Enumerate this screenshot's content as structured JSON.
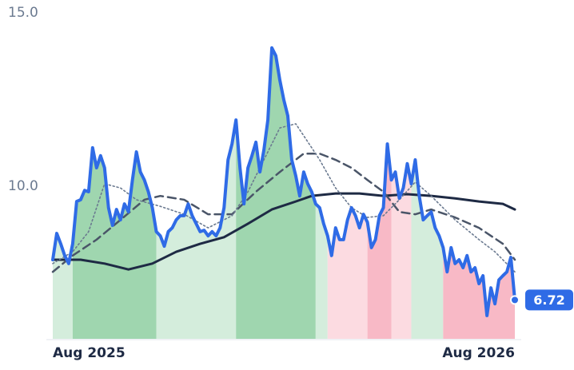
{
  "chart_data": {
    "type": "line",
    "xlim": [
      0,
      116
    ],
    "ylim": [
      5.6,
      15
    ],
    "xticks": [
      {
        "value": 0,
        "label": "Aug 2025"
      },
      {
        "value": 116,
        "label": "Aug 2026"
      }
    ],
    "yticks": [
      {
        "value": 15,
        "label": "15.0"
      },
      {
        "value": 10,
        "label": "10.0"
      }
    ],
    "bands": [
      {
        "from": 0,
        "to": 5,
        "color": "#d4eddc"
      },
      {
        "from": 5,
        "to": 26,
        "color": "#9fd6af"
      },
      {
        "from": 26,
        "to": 46,
        "color": "#d4eddc"
      },
      {
        "from": 46,
        "to": 66,
        "color": "#9fd6af"
      },
      {
        "from": 66,
        "to": 69,
        "color": "#d4eddc"
      },
      {
        "from": 69,
        "to": 79,
        "color": "#fcdbe1"
      },
      {
        "from": 79,
        "to": 85,
        "color": "#f8b9c6"
      },
      {
        "from": 85,
        "to": 90,
        "color": "#fcdbe1"
      },
      {
        "from": 90,
        "to": 98,
        "color": "#d4eddc"
      },
      {
        "from": 98,
        "to": 116,
        "color": "#f8b9c6"
      }
    ],
    "series": [
      {
        "color": "#1e2a44",
        "style": "solid",
        "width": 3,
        "x": [
          0,
          7,
          13,
          19,
          25,
          31,
          37,
          43,
          49,
          55,
          61,
          65,
          71,
          77,
          83,
          89,
          95,
          101,
          107,
          113,
          116
        ],
        "values": [
          7.88,
          7.88,
          7.77,
          7.6,
          7.77,
          8.11,
          8.34,
          8.53,
          8.92,
          9.33,
          9.56,
          9.72,
          9.79,
          9.79,
          9.72,
          9.77,
          9.72,
          9.65,
          9.56,
          9.49,
          9.33
        ]
      },
      {
        "color": "#4a5568",
        "style": "dashed",
        "width": 2.5,
        "x": [
          0,
          5,
          11,
          17,
          23,
          27,
          33,
          39,
          45,
          51,
          57,
          63,
          67,
          71,
          75,
          79,
          83,
          87,
          91,
          95,
          101,
          107,
          113,
          116
        ],
        "values": [
          7.53,
          8.0,
          8.46,
          9.03,
          9.61,
          9.72,
          9.61,
          9.19,
          9.19,
          9.84,
          10.41,
          10.94,
          10.94,
          10.76,
          10.53,
          10.18,
          9.84,
          9.26,
          9.19,
          9.33,
          9.1,
          8.8,
          8.34,
          7.88
        ]
      },
      {
        "color": "#6b7a90",
        "style": "dotted",
        "width": 1.6,
        "x": [
          0,
          5,
          9,
          13,
          17,
          21,
          27,
          33,
          39,
          45,
          49,
          53,
          57,
          61,
          65,
          67,
          71,
          75,
          79,
          83,
          87,
          91,
          95,
          101,
          107,
          111,
          116
        ],
        "values": [
          7.77,
          8.11,
          8.69,
          10.07,
          9.95,
          9.61,
          9.42,
          9.19,
          8.8,
          9.15,
          9.84,
          10.76,
          11.68,
          11.8,
          11.11,
          10.76,
          9.95,
          9.38,
          9.1,
          9.15,
          9.61,
          10.12,
          9.72,
          9.03,
          8.46,
          8.11,
          7.53
        ]
      },
      {
        "color": "#2f6be6",
        "style": "solid",
        "width": 4,
        "x": [
          0,
          1,
          2,
          3,
          4,
          5,
          6,
          7,
          8,
          9,
          10,
          11,
          12,
          13,
          14,
          15,
          16,
          17,
          18,
          19,
          20,
          21,
          22,
          23,
          24,
          25,
          26,
          27,
          28,
          29,
          30,
          31,
          32,
          33,
          34,
          35,
          36,
          37,
          38,
          39,
          40,
          41,
          42,
          43,
          44,
          45,
          46,
          47,
          48,
          49,
          50,
          51,
          52,
          53,
          54,
          55,
          56,
          57,
          58,
          59,
          60,
          61,
          62,
          63,
          64,
          65,
          66,
          67,
          68,
          69,
          70,
          71,
          72,
          73,
          74,
          75,
          76,
          77,
          78,
          79,
          80,
          81,
          82,
          83,
          84,
          85,
          86,
          87,
          88,
          89,
          90,
          91,
          92,
          93,
          94,
          95,
          96,
          97,
          98,
          99,
          100,
          101,
          102,
          103,
          104,
          105,
          106,
          107,
          108,
          109,
          110,
          111,
          112,
          113,
          114,
          115,
          116
        ],
        "values": [
          7.88,
          8.64,
          8.34,
          8.0,
          7.77,
          8.34,
          9.56,
          9.61,
          9.88,
          9.84,
          11.11,
          10.53,
          10.88,
          10.53,
          9.38,
          8.87,
          9.33,
          9.03,
          9.49,
          9.26,
          10.18,
          10.99,
          10.41,
          10.18,
          9.84,
          9.38,
          8.69,
          8.57,
          8.27,
          8.69,
          8.8,
          9.03,
          9.15,
          9.15,
          9.49,
          9.15,
          8.92,
          8.69,
          8.73,
          8.57,
          8.69,
          8.57,
          8.8,
          9.38,
          10.76,
          11.22,
          11.91,
          10.53,
          9.49,
          10.53,
          10.88,
          11.27,
          10.41,
          11.04,
          11.91,
          13.99,
          13.76,
          13.06,
          12.49,
          12.03,
          10.76,
          10.3,
          9.72,
          10.41,
          10.07,
          9.84,
          9.49,
          9.38,
          8.92,
          8.57,
          8.0,
          8.8,
          8.46,
          8.46,
          9.03,
          9.38,
          9.15,
          8.8,
          9.19,
          8.96,
          8.23,
          8.46,
          9.15,
          9.38,
          11.22,
          10.18,
          10.41,
          9.65,
          9.95,
          10.65,
          10.07,
          10.76,
          9.72,
          9.03,
          9.15,
          9.26,
          8.8,
          8.57,
          8.23,
          7.53,
          8.23,
          7.77,
          7.88,
          7.65,
          8.0,
          7.53,
          7.65,
          7.19,
          7.42,
          6.27,
          7.07,
          6.61,
          7.3,
          7.42,
          7.53,
          7.95,
          6.72
        ]
      }
    ]
  }
}
